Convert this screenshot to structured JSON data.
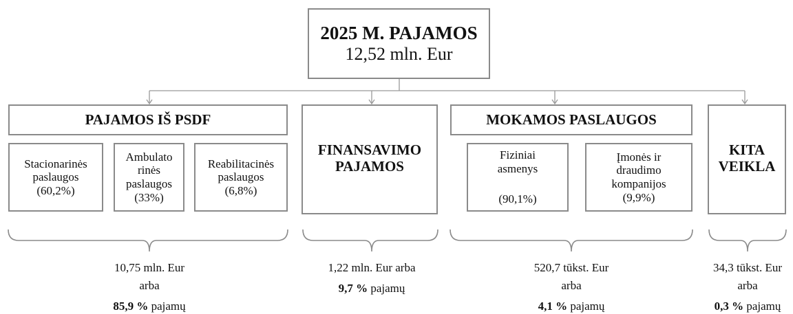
{
  "top": {
    "title": "2025 M. PAJAMOS",
    "amount": "12,52 mln. Eur"
  },
  "groups": [
    {
      "header": "PAJAMOS IŠ PSDF",
      "items": [
        {
          "lines": [
            "Stacionarinės",
            "paslaugos",
            "(60,2%)"
          ]
        },
        {
          "lines": [
            "Ambulato",
            "rinės",
            "paslaugos",
            "(33%)"
          ]
        },
        {
          "lines": [
            "Reabilitacinės",
            "paslaugos",
            "(6,8%)"
          ]
        }
      ],
      "summary": [
        "10,75 mln. Eur",
        "arba"
      ],
      "share": "85,9 %",
      "suffix": "pajamų"
    },
    {
      "header": [
        "FINANSAVIMO",
        "PAJAMOS"
      ],
      "summary": [
        "1,22 mln. Eur arba"
      ],
      "share": "9,7 %",
      "suffix": "pajamų"
    },
    {
      "header": "MOKAMOS PASLAUGOS",
      "items": [
        {
          "lines": [
            "Fiziniai",
            "asmenys"
          ],
          "share": "(90,1%)"
        },
        {
          "lines": [
            "Įmonės ir",
            "draudimo",
            "kompanijos",
            "(9,9%)"
          ]
        }
      ],
      "summary": [
        "520,7 tūkst. Eur",
        "arba"
      ],
      "share": "4,1 %",
      "suffix": "pajamų"
    },
    {
      "header": [
        "KITA",
        "VEIKLA"
      ],
      "summary": [
        "34,3 tūkst. Eur",
        "arba"
      ],
      "share": "0,3 %",
      "suffix": "pajamų"
    }
  ]
}
